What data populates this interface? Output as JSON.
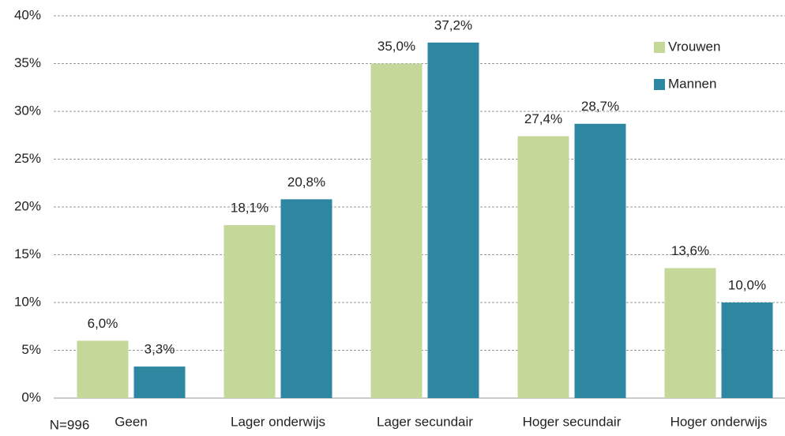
{
  "chart_data": {
    "type": "bar",
    "note": "N=996",
    "categories": [
      "Geen",
      "Lager onderwijs",
      "Lager secundair",
      "Hoger secundair",
      "Hoger onderwijs"
    ],
    "series": [
      {
        "name": "Vrouwen",
        "color": "#c4d89a",
        "values": [
          6.0,
          18.1,
          35.0,
          27.4,
          13.6
        ],
        "value_labels": [
          "6,0%",
          "18,1%",
          "35,0%",
          "27,4%",
          "13,6%"
        ]
      },
      {
        "name": "Mannen",
        "color": "#2e87a1",
        "values": [
          3.3,
          20.8,
          37.2,
          28.7,
          10.0
        ],
        "value_labels": [
          "3,3%",
          "20,8%",
          "37,2%",
          "28,7%",
          "10,0%"
        ]
      }
    ],
    "ylim": [
      0,
      40
    ],
    "yticks": [
      {
        "value": 0,
        "label": "0%"
      },
      {
        "value": 5,
        "label": "5%"
      },
      {
        "value": 10,
        "label": "10%"
      },
      {
        "value": 15,
        "label": "15%"
      },
      {
        "value": 20,
        "label": "20%"
      },
      {
        "value": 25,
        "label": "25%"
      },
      {
        "value": 30,
        "label": "30%"
      },
      {
        "value": 35,
        "label": "35%"
      },
      {
        "value": 40,
        "label": "40%"
      }
    ],
    "grid": true,
    "legend": "top-right"
  }
}
